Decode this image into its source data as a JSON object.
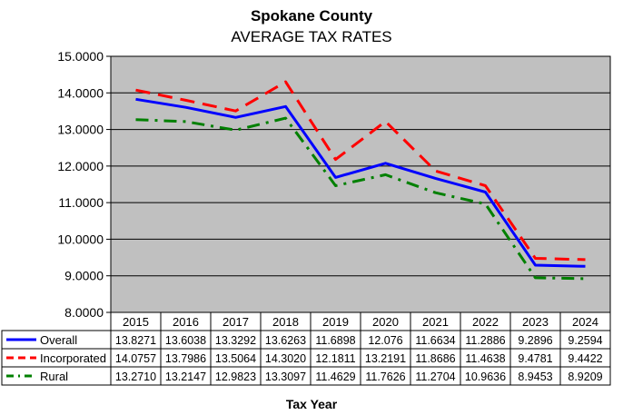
{
  "chart_data": {
    "type": "line",
    "title": "Spokane County",
    "subtitle": "AVERAGE TAX RATES",
    "xlabel": "Tax Year",
    "ylabel": "",
    "ylim": [
      8.0,
      15.0
    ],
    "y_ticks": [
      "8.0000",
      "9.0000",
      "10.0000",
      "11.0000",
      "12.0000",
      "13.0000",
      "14.0000",
      "15.0000"
    ],
    "categories": [
      "2015",
      "2016",
      "2017",
      "2018",
      "2019",
      "2020",
      "2021",
      "2022",
      "2023",
      "2024"
    ],
    "grid": true,
    "legend_placement": "data-table",
    "background_color": "#c0c0c0",
    "series": [
      {
        "name": "Overall",
        "color": "#0000ff",
        "dash": "solid",
        "values": [
          13.8271,
          13.6038,
          13.3292,
          13.6263,
          11.6898,
          12.076,
          11.6634,
          11.2886,
          9.2896,
          9.2594
        ],
        "labels": [
          "13.8271",
          "13.6038",
          "13.3292",
          "13.6263",
          "11.6898",
          "12.076",
          "11.6634",
          "11.2886",
          "9.2896",
          "9.2594"
        ]
      },
      {
        "name": "Incorporated",
        "color": "#ff0000",
        "dash": "dashed",
        "values": [
          14.0757,
          13.7986,
          13.5064,
          14.302,
          12.1811,
          13.2191,
          11.8686,
          11.4638,
          9.4781,
          9.4422
        ],
        "labels": [
          "14.0757",
          "13.7986",
          "13.5064",
          "14.3020",
          "12.1811",
          "13.2191",
          "11.8686",
          "11.4638",
          "9.4781",
          "9.4422"
        ]
      },
      {
        "name": "Rural",
        "color": "#008000",
        "dash": "dash-dot",
        "values": [
          13.271,
          13.2147,
          12.9823,
          13.3097,
          11.4629,
          11.7626,
          11.2704,
          10.9636,
          8.9453,
          8.9209
        ],
        "labels": [
          "13.2710",
          "13.2147",
          "12.9823",
          "13.3097",
          "11.4629",
          "11.7626",
          "11.2704",
          "10.9636",
          "8.9453",
          "8.9209"
        ]
      }
    ]
  }
}
